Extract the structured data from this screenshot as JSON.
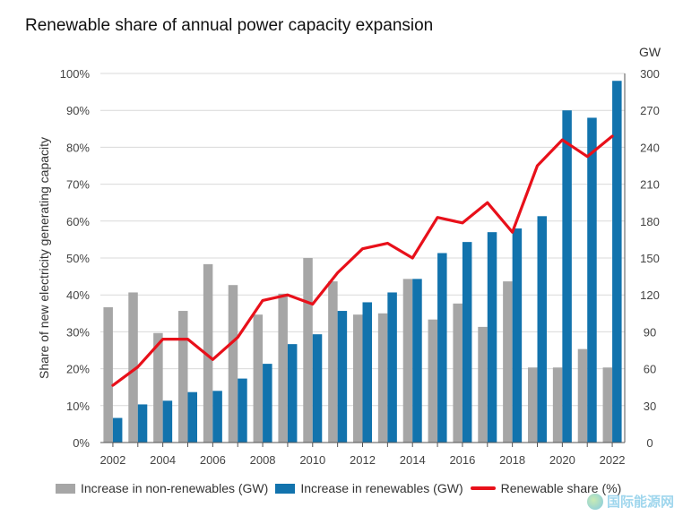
{
  "title": "Renewable share of annual power capacity expansion",
  "watermark": "国际能源网",
  "colors": {
    "nonrenewable": "#a6a6a6",
    "renewable": "#1273ad",
    "share_line": "#e8101a",
    "grid": "#d9d9d9"
  },
  "chart_data": {
    "type": "bar",
    "title": "Renewable share of annual power capacity expansion",
    "years": [
      2002,
      2003,
      2004,
      2005,
      2006,
      2007,
      2008,
      2009,
      2010,
      2011,
      2012,
      2013,
      2014,
      2015,
      2016,
      2017,
      2018,
      2019,
      2020,
      2021,
      2022
    ],
    "x_tick_labels": [
      "2002",
      "2004",
      "2006",
      "2008",
      "2010",
      "2012",
      "2014",
      "2016",
      "2018",
      "2020",
      "2022"
    ],
    "ylabel_left": "Share of new electricity generating capacity",
    "ylabel_right": "GW",
    "left_ticks": [
      "0%",
      "10%",
      "20%",
      "30%",
      "40%",
      "50%",
      "60%",
      "70%",
      "80%",
      "90%",
      "100%"
    ],
    "right_ticks": [
      "0",
      "30",
      "60",
      "90",
      "120",
      "150",
      "180",
      "210",
      "240",
      "270",
      "300"
    ],
    "ylim_left": [
      0,
      100
    ],
    "ylim_right": [
      0,
      300
    ],
    "grid": true,
    "legend_position": "bottom",
    "series": [
      {
        "name": "Increase in non-renewables (GW)",
        "type": "bar",
        "axis": "right",
        "values": [
          110,
          122,
          89,
          107,
          145,
          128,
          104,
          121,
          150,
          131,
          104,
          105,
          133,
          100,
          113,
          94,
          131,
          61,
          61,
          76,
          61
        ]
      },
      {
        "name": "Increase in renewables (GW)",
        "type": "bar",
        "axis": "right",
        "values": [
          20,
          31,
          34,
          41,
          42,
          52,
          64,
          80,
          88,
          107,
          114,
          122,
          133,
          154,
          163,
          171,
          174,
          184,
          270,
          264,
          294
        ]
      },
      {
        "name": "Renewable share (%)",
        "type": "line",
        "axis": "left",
        "values": [
          15.5,
          20.5,
          28,
          28,
          22.5,
          28.5,
          38.5,
          40,
          37.5,
          46,
          52.5,
          54,
          50,
          61,
          59.5,
          65,
          57,
          75,
          82,
          77.5,
          83
        ]
      }
    ]
  }
}
